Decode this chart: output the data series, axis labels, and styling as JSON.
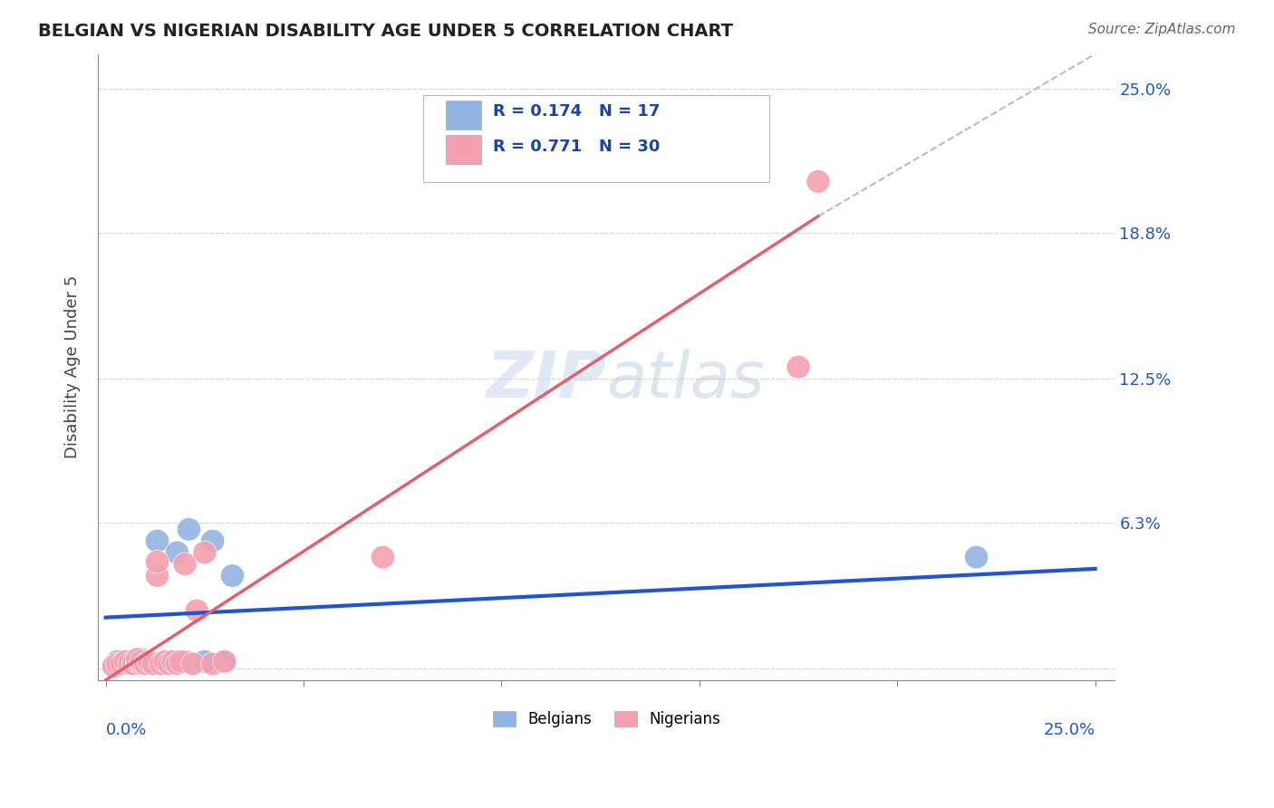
{
  "title": "BELGIAN VS NIGERIAN DISABILITY AGE UNDER 5 CORRELATION CHART",
  "source": "Source: ZipAtlas.com",
  "ylabel": "Disability Age Under 5",
  "yticks": [
    0.0,
    0.063,
    0.125,
    0.188,
    0.25
  ],
  "ytick_labels": [
    "",
    "6.3%",
    "12.5%",
    "18.8%",
    "25.0%"
  ],
  "xmin": 0.0,
  "xmax": 0.25,
  "ymin": -0.005,
  "ymax": 0.265,
  "belgian_R": "0.174",
  "belgian_N": "17",
  "nigerian_R": "0.771",
  "nigerian_N": "30",
  "belgian_color": "#92b4e3",
  "nigerian_color": "#f4a0b0",
  "belgian_line_color": "#2255cc",
  "nigerian_line_color": "#e06070",
  "background_color": "#ffffff",
  "grid_color": "#cccccc",
  "belgian_points_x": [
    0.003,
    0.008,
    0.009,
    0.01,
    0.011,
    0.012,
    0.013,
    0.014,
    0.016,
    0.018,
    0.02,
    0.021,
    0.025,
    0.027,
    0.03,
    0.032,
    0.22
  ],
  "belgian_points_y": [
    0.003,
    0.003,
    0.004,
    0.002,
    0.003,
    0.002,
    0.055,
    0.002,
    0.003,
    0.05,
    0.003,
    0.06,
    0.003,
    0.055,
    0.003,
    0.04,
    0.048
  ],
  "nigerian_points_x": [
    0.002,
    0.003,
    0.004,
    0.005,
    0.006,
    0.007,
    0.008,
    0.008,
    0.009,
    0.009,
    0.01,
    0.011,
    0.012,
    0.013,
    0.013,
    0.014,
    0.015,
    0.016,
    0.017,
    0.018,
    0.019,
    0.02,
    0.022,
    0.023,
    0.025,
    0.027,
    0.03,
    0.07,
    0.175,
    0.18
  ],
  "nigerian_points_y": [
    0.001,
    0.002,
    0.002,
    0.003,
    0.002,
    0.002,
    0.003,
    0.004,
    0.002,
    0.003,
    0.002,
    0.003,
    0.002,
    0.04,
    0.046,
    0.002,
    0.003,
    0.002,
    0.003,
    0.002,
    0.003,
    0.045,
    0.002,
    0.025,
    0.05,
    0.002,
    0.003,
    0.048,
    0.13,
    0.21
  ],
  "bel_line_x0": 0.0,
  "bel_line_y0": 0.022,
  "bel_line_x1": 0.25,
  "bel_line_y1": 0.043,
  "nig_line_x0": 0.0,
  "nig_line_y0": -0.005,
  "nig_line_x1": 0.18,
  "nig_line_y1": 0.195,
  "dash_line_x0": 0.18,
  "dash_line_y0": 0.195,
  "dash_line_x1": 0.25,
  "dash_line_y1": 0.265
}
